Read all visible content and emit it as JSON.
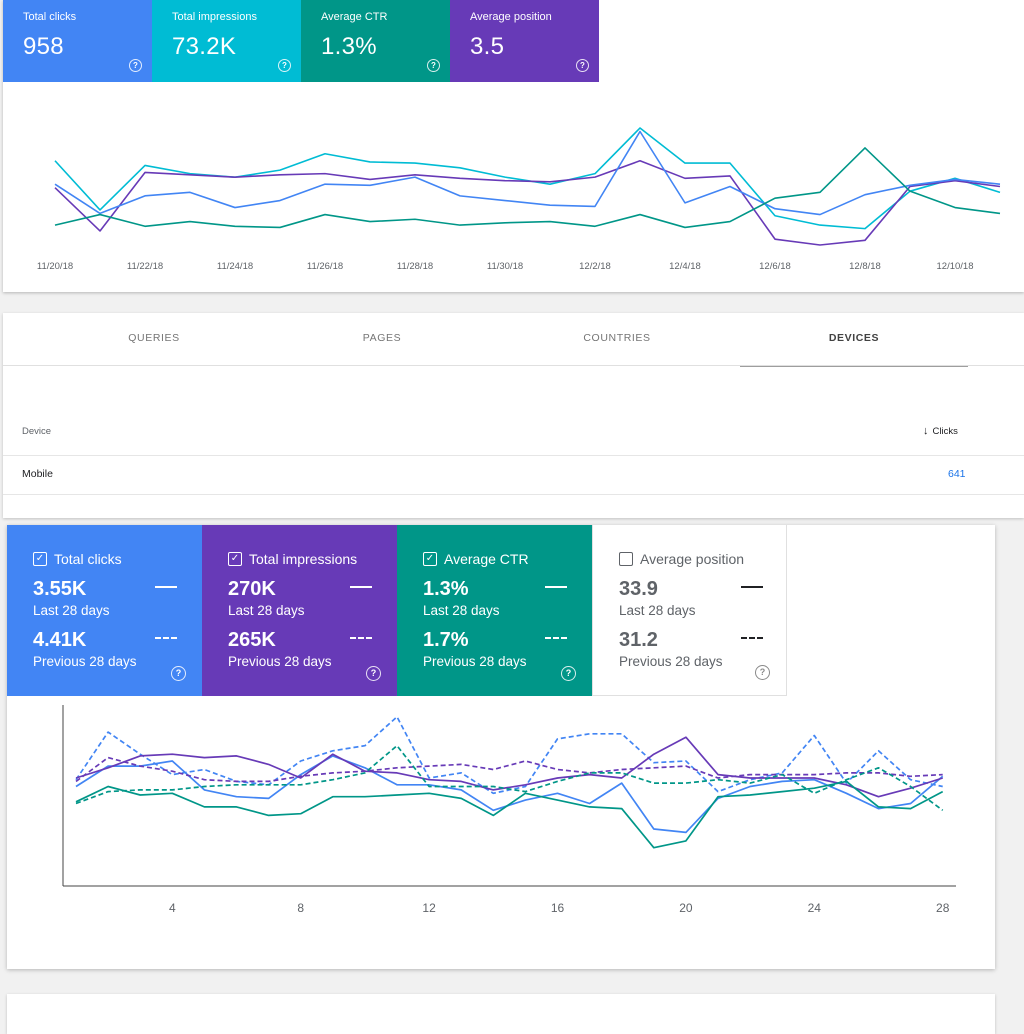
{
  "top_cards": [
    {
      "label": "Total clicks",
      "value": "958",
      "color": "#4285f4"
    },
    {
      "label": "Total impressions",
      "value": "73.2K",
      "color": "#00bcd4"
    },
    {
      "label": "Average CTR",
      "value": "1.3%",
      "color": "#009688"
    },
    {
      "label": "Average position",
      "value": "3.5",
      "color": "#673ab7"
    }
  ],
  "help_glyph": "?",
  "chart_data": [
    {
      "type": "line",
      "x": [
        "11/20/18",
        "11/21/18",
        "11/22/18",
        "11/23/18",
        "11/24/18",
        "11/25/18",
        "11/26/18",
        "11/27/18",
        "11/28/18",
        "11/29/18",
        "11/30/18",
        "12/1/18",
        "12/2/18",
        "12/3/18",
        "12/4/18",
        "12/5/18",
        "12/6/18",
        "12/7/18",
        "12/8/18",
        "12/9/18",
        "12/10/18",
        "12/11/18"
      ],
      "xticks": [
        "11/20/18",
        "11/22/18",
        "11/24/18",
        "11/26/18",
        "11/28/18",
        "11/30/18",
        "12/2/18",
        "12/4/18",
        "12/6/18",
        "12/8/18",
        "12/10/18"
      ],
      "series": [
        {
          "color": "#00bcd4",
          "values": [
            0.72,
            0.3,
            0.68,
            0.61,
            0.58,
            0.64,
            0.78,
            0.71,
            0.7,
            0.66,
            0.58,
            0.52,
            0.61,
            1.0,
            0.7,
            0.7,
            0.25,
            0.17,
            0.14,
            0.46,
            0.57,
            0.45
          ]
        },
        {
          "color": "#673ab7",
          "values": [
            0.49,
            0.12,
            0.62,
            0.6,
            0.58,
            0.6,
            0.61,
            0.56,
            0.6,
            0.57,
            0.55,
            0.54,
            0.58,
            0.72,
            0.57,
            0.59,
            0.05,
            0.0,
            0.04,
            0.5,
            0.55,
            0.5
          ]
        },
        {
          "color": "#4285f4",
          "values": [
            0.52,
            0.27,
            0.42,
            0.45,
            0.32,
            0.38,
            0.52,
            0.51,
            0.58,
            0.42,
            0.38,
            0.34,
            0.33,
            0.97,
            0.36,
            0.5,
            0.31,
            0.26,
            0.43,
            0.51,
            0.56,
            0.52
          ]
        },
        {
          "color": "#009688",
          "values": [
            0.17,
            0.26,
            0.16,
            0.2,
            0.16,
            0.15,
            0.26,
            0.2,
            0.22,
            0.17,
            0.19,
            0.2,
            0.16,
            0.26,
            0.15,
            0.2,
            0.4,
            0.45,
            0.83,
            0.46,
            0.32,
            0.27
          ]
        }
      ]
    },
    {
      "type": "line",
      "x": [
        1,
        2,
        3,
        4,
        5,
        6,
        7,
        8,
        9,
        10,
        11,
        12,
        13,
        14,
        15,
        16,
        17,
        18,
        19,
        20,
        21,
        22,
        23,
        24,
        25,
        26,
        27,
        28
      ],
      "xticks": [
        "4",
        "8",
        "12",
        "16",
        "20",
        "24",
        "28"
      ],
      "series": [
        {
          "name": "Total clicks",
          "color": "#4285f4",
          "values": [
            0.55,
            0.67,
            0.67,
            0.7,
            0.53,
            0.49,
            0.48,
            0.62,
            0.73,
            0.66,
            0.56,
            0.56,
            0.53,
            0.41,
            0.47,
            0.51,
            0.45,
            0.57,
            0.3,
            0.28,
            0.48,
            0.55,
            0.58,
            0.59,
            0.51,
            0.42,
            0.45,
            0.61
          ]
        },
        {
          "name": "Total clicks previous",
          "color": "#4285f4",
          "dashed": true,
          "values": [
            0.59,
            0.87,
            0.74,
            0.62,
            0.65,
            0.58,
            0.56,
            0.7,
            0.76,
            0.79,
            0.96,
            0.6,
            0.63,
            0.51,
            0.55,
            0.83,
            0.86,
            0.86,
            0.69,
            0.7,
            0.52,
            0.59,
            0.63,
            0.85,
            0.57,
            0.76,
            0.59,
            0.55
          ]
        },
        {
          "name": "Total impressions",
          "color": "#673ab7",
          "values": [
            0.6,
            0.66,
            0.73,
            0.74,
            0.72,
            0.73,
            0.68,
            0.6,
            0.74,
            0.64,
            0.63,
            0.59,
            0.58,
            0.53,
            0.56,
            0.6,
            0.62,
            0.6,
            0.74,
            0.84,
            0.62,
            0.6,
            0.6,
            0.6,
            0.56,
            0.49,
            0.54,
            0.6
          ]
        },
        {
          "name": "Total impressions previous",
          "color": "#673ab7",
          "dashed": true,
          "values": [
            0.58,
            0.72,
            0.67,
            0.64,
            0.59,
            0.58,
            0.58,
            0.61,
            0.63,
            0.64,
            0.66,
            0.67,
            0.68,
            0.65,
            0.7,
            0.65,
            0.63,
            0.65,
            0.66,
            0.67,
            0.6,
            0.62,
            0.62,
            0.62,
            0.63,
            0.63,
            0.61,
            0.62
          ]
        },
        {
          "name": "Average CTR",
          "color": "#009688",
          "values": [
            0.46,
            0.55,
            0.5,
            0.51,
            0.43,
            0.43,
            0.38,
            0.39,
            0.49,
            0.49,
            0.5,
            0.51,
            0.48,
            0.38,
            0.51,
            0.47,
            0.43,
            0.42,
            0.19,
            0.23,
            0.49,
            0.5,
            0.52,
            0.54,
            0.58,
            0.43,
            0.42,
            0.52
          ]
        },
        {
          "name": "Average CTR previous",
          "color": "#009688",
          "dashed": true,
          "values": [
            0.45,
            0.52,
            0.53,
            0.53,
            0.55,
            0.56,
            0.56,
            0.56,
            0.59,
            0.63,
            0.79,
            0.55,
            0.55,
            0.55,
            0.52,
            0.58,
            0.63,
            0.63,
            0.57,
            0.57,
            0.59,
            0.57,
            0.62,
            0.51,
            0.59,
            0.66,
            0.55,
            0.41
          ]
        }
      ]
    }
  ],
  "tabs": {
    "queries": "QUERIES",
    "pages": "PAGES",
    "countries": "COUNTRIES",
    "devices": "DEVICES"
  },
  "table": {
    "col_device": "Device",
    "col_clicks": "Clicks",
    "rows": [
      {
        "device": "Mobile",
        "clicks": "641"
      }
    ]
  },
  "bottom_cards": [
    {
      "label": "Total clicks",
      "checked": true,
      "value": "3.55K",
      "period": "Last 28 days",
      "prev_value": "4.41K",
      "prev_period": "Previous 28 days",
      "color": "#4285f4"
    },
    {
      "label": "Total impressions",
      "checked": true,
      "value": "270K",
      "period": "Last 28 days",
      "prev_value": "265K",
      "prev_period": "Previous 28 days",
      "color": "#673ab7"
    },
    {
      "label": "Average CTR",
      "checked": true,
      "value": "1.3%",
      "period": "Last 28 days",
      "prev_value": "1.7%",
      "prev_period": "Previous 28 days",
      "color": "#009688"
    },
    {
      "label": "Average position",
      "checked": false,
      "value": "33.9",
      "period": "Last 28 days",
      "prev_value": "31.2",
      "prev_period": "Previous 28 days",
      "color": "#ffffff"
    }
  ],
  "check_glyph": "✓"
}
